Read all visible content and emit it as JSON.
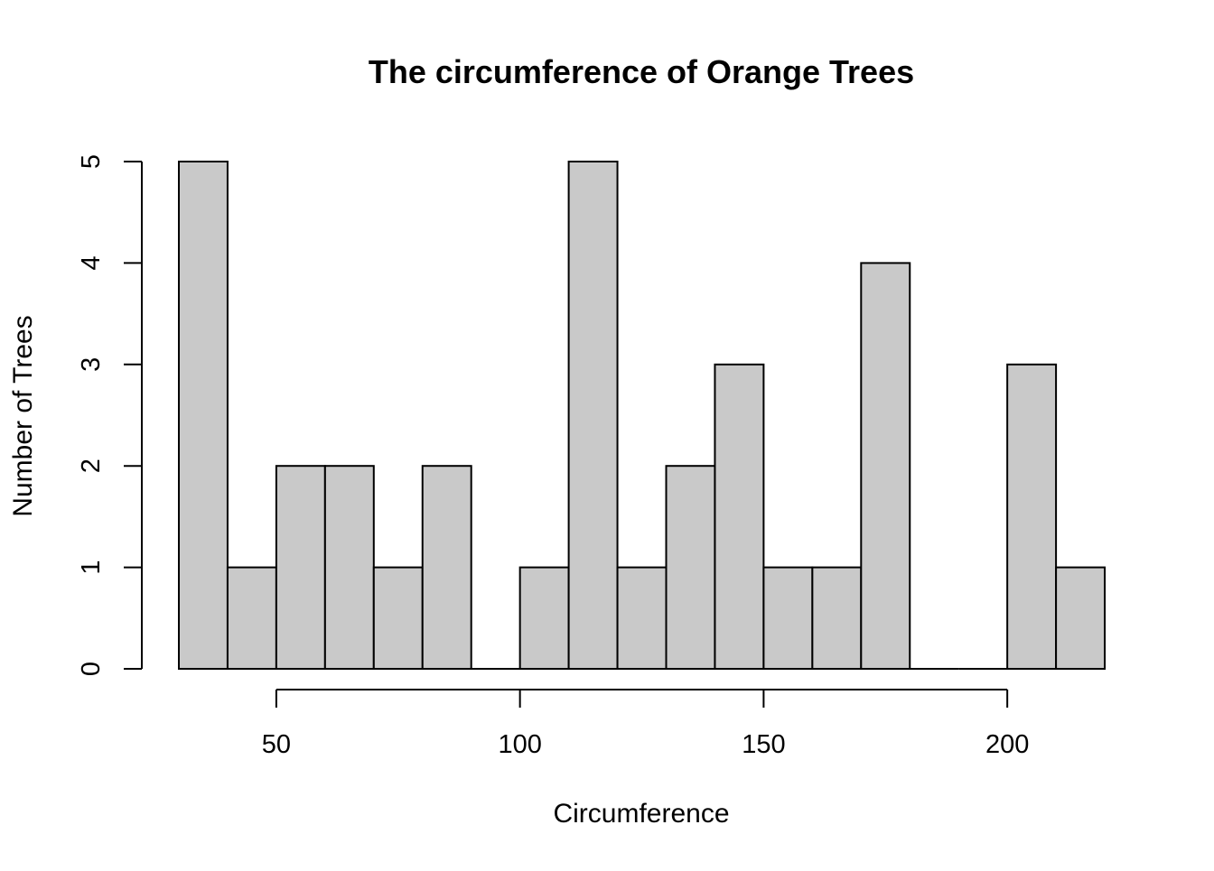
{
  "chart_data": {
    "type": "bar",
    "subtype": "histogram",
    "title": "The circumference of Orange Trees",
    "xlabel": "Circumference",
    "ylabel": "Number of Trees",
    "bin_width": 10,
    "bins": [
      {
        "start": 30,
        "end": 40,
        "count": 5
      },
      {
        "start": 40,
        "end": 50,
        "count": 1
      },
      {
        "start": 50,
        "end": 60,
        "count": 2
      },
      {
        "start": 60,
        "end": 70,
        "count": 2
      },
      {
        "start": 70,
        "end": 80,
        "count": 1
      },
      {
        "start": 80,
        "end": 90,
        "count": 2
      },
      {
        "start": 90,
        "end": 100,
        "count": 0
      },
      {
        "start": 100,
        "end": 110,
        "count": 1
      },
      {
        "start": 110,
        "end": 120,
        "count": 5
      },
      {
        "start": 120,
        "end": 130,
        "count": 1
      },
      {
        "start": 130,
        "end": 140,
        "count": 2
      },
      {
        "start": 140,
        "end": 150,
        "count": 3
      },
      {
        "start": 150,
        "end": 160,
        "count": 1
      },
      {
        "start": 160,
        "end": 170,
        "count": 1
      },
      {
        "start": 170,
        "end": 180,
        "count": 4
      },
      {
        "start": 180,
        "end": 190,
        "count": 0
      },
      {
        "start": 190,
        "end": 200,
        "count": 0
      },
      {
        "start": 200,
        "end": 210,
        "count": 3
      },
      {
        "start": 210,
        "end": 220,
        "count": 1
      }
    ],
    "x_ticks": [
      50,
      100,
      150,
      200
    ],
    "y_ticks": [
      0,
      1,
      2,
      3,
      4,
      5
    ],
    "xlim": [
      30,
      220
    ],
    "ylim": [
      0,
      5
    ],
    "grid": false,
    "legend": "none",
    "bar_fill": "#c9c9c9",
    "bar_stroke": "#000000"
  }
}
